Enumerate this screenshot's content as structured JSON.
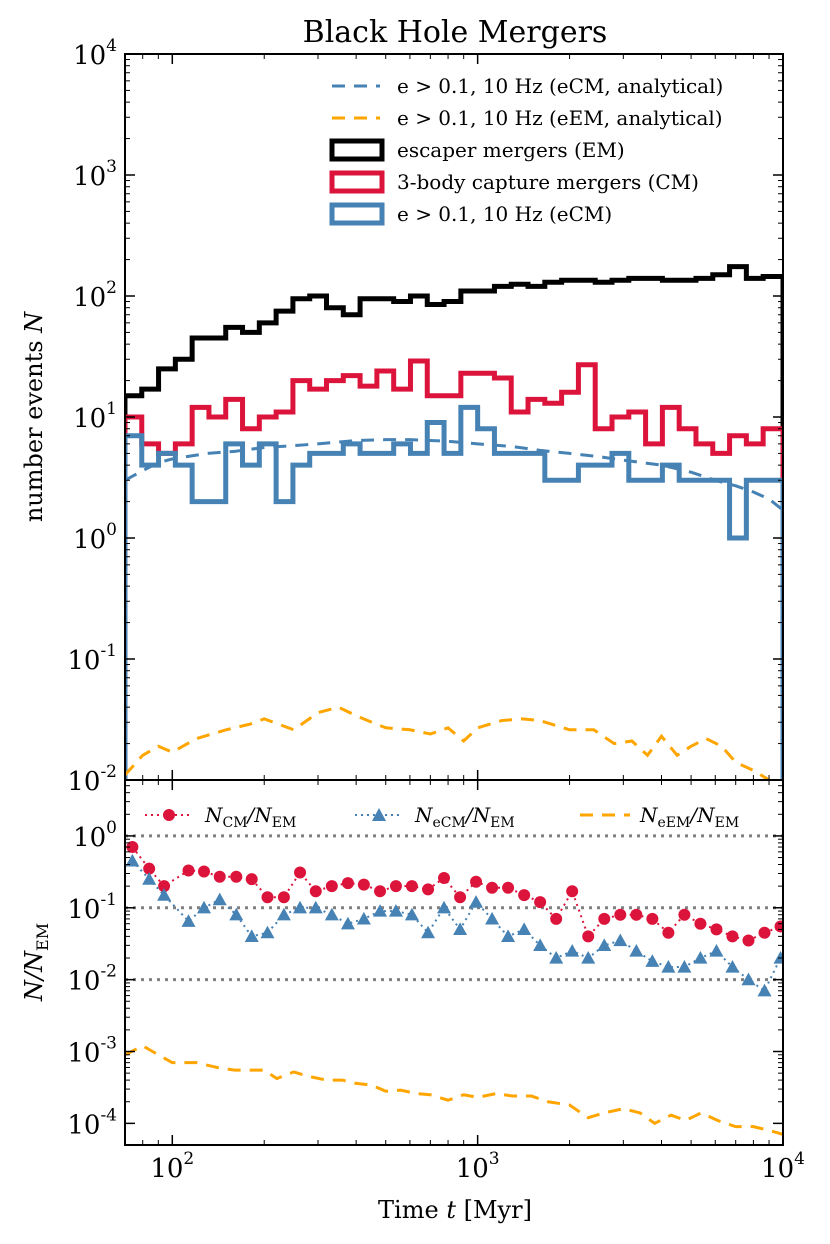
{
  "chart_data": [
    {
      "type": "line",
      "panel": "top",
      "title": "Black Hole Mergers",
      "ylabel_text": "number events ",
      "ylabel_var": "N",
      "xscale": "log",
      "yscale": "log",
      "xlim": [
        70,
        10000
      ],
      "ylim": [
        0.01,
        10000
      ],
      "yticks": [
        0.01,
        0.1,
        1,
        10,
        100,
        1000,
        10000
      ],
      "ytick_labels": [
        {
          "base": "10",
          "exp": "-2"
        },
        {
          "base": "10",
          "exp": "-1"
        },
        {
          "base": "10",
          "exp": "0"
        },
        {
          "base": "10",
          "exp": "1"
        },
        {
          "base": "10",
          "exp": "2"
        },
        {
          "base": "10",
          "exp": "3"
        },
        {
          "base": "10",
          "exp": "4"
        }
      ],
      "grid": false,
      "legend_position": "top-right",
      "bin_edges_log10": [
        1.845,
        1.9,
        1.955,
        2.01,
        2.065,
        2.12,
        2.175,
        2.23,
        2.285,
        2.34,
        2.395,
        2.45,
        2.505,
        2.56,
        2.615,
        2.67,
        2.725,
        2.78,
        2.835,
        2.89,
        2.945,
        3.0,
        3.055,
        3.11,
        3.165,
        3.22,
        3.275,
        3.33,
        3.385,
        3.44,
        3.495,
        3.55,
        3.605,
        3.66,
        3.715,
        3.77,
        3.825,
        3.88,
        3.935,
        4.0
      ],
      "series": [
        {
          "name": "escaper mergers (EM)",
          "kind": "step",
          "color": "#000000",
          "values": [
            15,
            17,
            25,
            30,
            45,
            45,
            55,
            50,
            60,
            75,
            95,
            100,
            80,
            70,
            95,
            95,
            90,
            100,
            85,
            90,
            110,
            110,
            120,
            125,
            120,
            130,
            135,
            135,
            130,
            135,
            140,
            140,
            135,
            135,
            140,
            150,
            175,
            140,
            145
          ]
        },
        {
          "name": "3-body capture mergers (CM)",
          "kind": "step",
          "color": "#dc143c",
          "values": [
            10,
            6,
            5,
            6,
            12,
            10,
            14,
            8,
            10,
            11,
            20,
            17,
            20,
            22,
            18,
            24,
            17,
            29,
            15,
            15,
            23,
            23,
            21,
            11,
            14,
            13,
            16,
            27,
            8,
            10,
            11,
            6,
            12,
            8,
            6,
            5,
            7,
            6,
            8
          ]
        },
        {
          "name": "e > 0.1, 10 Hz (eCM)",
          "kind": "step",
          "color": "#4682b4",
          "values": [
            7,
            4,
            5,
            4,
            2,
            2,
            6,
            4,
            6,
            2,
            4,
            5,
            5,
            6,
            5,
            5,
            6,
            5,
            9,
            5,
            12,
            8,
            5,
            5,
            5,
            3,
            3,
            4,
            4,
            5,
            3,
            3,
            4,
            3,
            3,
            3,
            1,
            3,
            3
          ]
        },
        {
          "name": "e > 0.1, 10 Hz (eCM, analytical)",
          "kind": "dashed",
          "color": "#4682b4",
          "x": [
            70,
            80,
            90,
            100,
            130,
            160,
            200,
            250,
            300,
            400,
            500,
            600,
            800,
            1000,
            1300,
            1600,
            2000,
            2500,
            3000,
            4000,
            5000,
            6000,
            7000,
            8000,
            9000,
            10000
          ],
          "values": [
            3,
            3.6,
            4.2,
            4.5,
            5,
            5.2,
            5.6,
            5.8,
            6,
            6.4,
            6.5,
            6.5,
            6.3,
            6.0,
            5.7,
            5.3,
            5.0,
            4.7,
            4.4,
            4.0,
            3.5,
            3.0,
            2.7,
            2.4,
            2.1,
            1.7
          ]
        },
        {
          "name": "e > 0.1, 10 Hz (eEM, analytical)",
          "kind": "dashed",
          "color": "#ffa500",
          "x": [
            70,
            80,
            90,
            100,
            120,
            150,
            180,
            200,
            250,
            300,
            350,
            400,
            450,
            500,
            600,
            700,
            800,
            900,
            1000,
            1200,
            1400,
            1600,
            2000,
            2400,
            2800,
            3200,
            3600,
            4000,
            4500,
            5000,
            5600,
            6300,
            7000,
            8000,
            9000,
            10000
          ],
          "values": [
            0.011,
            0.016,
            0.019,
            0.017,
            0.022,
            0.026,
            0.029,
            0.032,
            0.026,
            0.036,
            0.04,
            0.034,
            0.03,
            0.027,
            0.026,
            0.024,
            0.027,
            0.021,
            0.027,
            0.031,
            0.032,
            0.031,
            0.026,
            0.026,
            0.02,
            0.021,
            0.016,
            0.023,
            0.016,
            0.019,
            0.022,
            0.019,
            0.014,
            0.012,
            0.01,
            0.008
          ]
        }
      ],
      "legend_entries": [
        {
          "series_index": 3,
          "text": "e > 0.1, 10 Hz (eCM, analytical)"
        },
        {
          "series_index": 4,
          "text": "e > 0.1, 10 Hz (eEM, analytical)"
        },
        {
          "series_index": 0,
          "text": "escaper mergers (EM)"
        },
        {
          "series_index": 1,
          "text": "3-body capture mergers (CM)"
        },
        {
          "series_index": 2,
          "text": "e > 0.1, 10 Hz (eCM)"
        }
      ]
    },
    {
      "type": "line",
      "panel": "bottom",
      "xlabel_text": "Time ",
      "xlabel_var": "t",
      "xlabel_unit": " [Myr]",
      "ylabel_var": "N/N",
      "ylabel_sub": "EM",
      "xscale": "log",
      "yscale": "log",
      "xlim": [
        70,
        10000
      ],
      "ylim": [
        5e-05,
        6
      ],
      "xticks": [
        100,
        1000,
        10000
      ],
      "xtick_labels": [
        {
          "base": "10",
          "exp": "2"
        },
        {
          "base": "10",
          "exp": "3"
        },
        {
          "base": "10",
          "exp": "4"
        }
      ],
      "yticks": [
        0.0001,
        0.001,
        0.01,
        0.1,
        1
      ],
      "ytick_labels": [
        {
          "base": "10",
          "exp": "-4"
        },
        {
          "base": "10",
          "exp": "-3"
        },
        {
          "base": "10",
          "exp": "-2"
        },
        {
          "base": "10",
          "exp": "-1"
        },
        {
          "base": "10",
          "exp": "0"
        }
      ],
      "reference_lines": [
        1,
        0.1,
        0.01
      ],
      "legend_position": "top",
      "series": [
        {
          "name": "N_CM/N_EM",
          "label_main": "N",
          "label_sub": "CM",
          "label_den_sub": "EM",
          "kind": "dotted-markers",
          "marker": "circle",
          "color": "#dc143c",
          "x": [
            74,
            84,
            94,
            113,
            127,
            143,
            162,
            182,
            205,
            232,
            262,
            295,
            333,
            376,
            424,
            479,
            540,
            609,
            688,
            776,
            876,
            988,
            1115,
            1258,
            1420,
            1602,
            1808,
            2040,
            2302,
            2598,
            2932,
            3309,
            3734,
            4213,
            4754,
            5365,
            6054,
            6831,
            7708,
            8699,
            9816
          ],
          "values": [
            0.7,
            0.35,
            0.2,
            0.33,
            0.32,
            0.27,
            0.27,
            0.25,
            0.14,
            0.14,
            0.31,
            0.17,
            0.2,
            0.22,
            0.21,
            0.17,
            0.2,
            0.2,
            0.18,
            0.26,
            0.14,
            0.23,
            0.19,
            0.19,
            0.15,
            0.12,
            0.07,
            0.17,
            0.04,
            0.07,
            0.08,
            0.08,
            0.07,
            0.045,
            0.08,
            0.06,
            0.05,
            0.04,
            0.035,
            0.045,
            0.055
          ]
        },
        {
          "name": "N_eCM/N_EM",
          "label_main": "N",
          "label_sub": "eCM",
          "label_den_sub": "EM",
          "kind": "dotted-markers",
          "marker": "triangle",
          "color": "#4682b4",
          "x": [
            74,
            84,
            94,
            113,
            127,
            143,
            162,
            182,
            205,
            232,
            262,
            295,
            333,
            376,
            424,
            479,
            540,
            609,
            688,
            776,
            876,
            988,
            1115,
            1258,
            1420,
            1602,
            1808,
            2040,
            2302,
            2598,
            2932,
            3309,
            3734,
            4213,
            4754,
            5365,
            6054,
            6831,
            7708,
            8699,
            9816
          ],
          "values": [
            0.45,
            0.25,
            0.15,
            0.065,
            0.1,
            0.13,
            0.08,
            0.04,
            0.045,
            0.08,
            0.1,
            0.1,
            0.08,
            0.06,
            0.07,
            0.09,
            0.09,
            0.08,
            0.045,
            0.1,
            0.05,
            0.12,
            0.07,
            0.04,
            0.05,
            0.03,
            0.02,
            0.025,
            0.02,
            0.03,
            0.035,
            0.025,
            0.018,
            0.015,
            0.015,
            0.02,
            0.025,
            0.015,
            0.01,
            0.007,
            0.02
          ]
        },
        {
          "name": "N_eEM/N_EM",
          "label_main": "N",
          "label_sub": "eEM",
          "label_den_sub": "EM",
          "kind": "dashed",
          "color": "#ffa500",
          "x": [
            70,
            80,
            90,
            100,
            120,
            140,
            160,
            180,
            200,
            220,
            250,
            280,
            320,
            360,
            400,
            450,
            500,
            560,
            630,
            700,
            800,
            900,
            1000,
            1150,
            1300,
            1500,
            1700,
            2000,
            2300,
            2600,
            3000,
            3400,
            3800,
            4300,
            4800,
            5400,
            6100,
            7000,
            8000,
            9000,
            10000
          ],
          "values": [
            0.0009,
            0.0012,
            0.0009,
            0.0007,
            0.0007,
            0.0006,
            0.00055,
            0.00055,
            0.00055,
            0.00042,
            0.00052,
            0.00045,
            0.0004,
            0.0004,
            0.00036,
            0.00034,
            0.00028,
            0.00029,
            0.00026,
            0.00025,
            0.00021,
            0.00025,
            0.00023,
            0.00026,
            0.00024,
            0.00024,
            0.0002,
            0.00018,
            0.00012,
            0.00014,
            0.00016,
            0.00014,
            0.0001,
            0.00013,
            0.00011,
            0.00014,
            0.00011,
            9e-05,
            9e-05,
            8e-05,
            7e-05
          ]
        }
      ]
    }
  ]
}
